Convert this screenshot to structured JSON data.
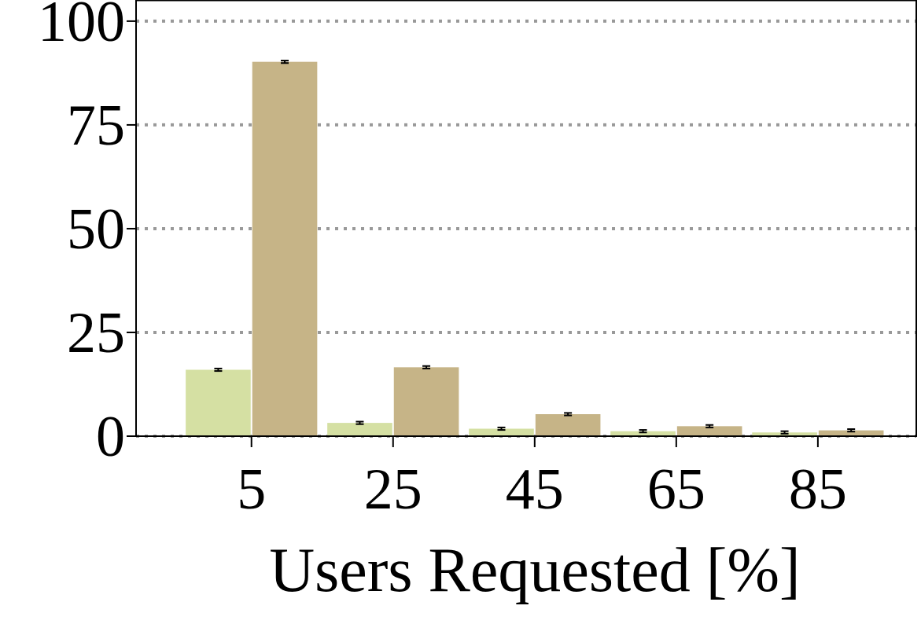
{
  "chart_data": {
    "type": "bar",
    "x_label": "Users Requested [%]",
    "x": [
      5,
      25,
      45,
      65,
      85
    ],
    "series": [
      {
        "color": "#d5e0a3",
        "values": [
          16,
          3.2,
          1.8,
          1.2,
          0.9
        ],
        "errors": [
          0.3,
          0.3,
          0.3,
          0.3,
          0.3
        ]
      },
      {
        "color": "#c6b487",
        "values": [
          90.2,
          16.6,
          5.3,
          2.4,
          1.4
        ],
        "errors": [
          0.3,
          0.3,
          0.3,
          0.3,
          0.3
        ]
      }
    ],
    "xlim": [
      -11.3,
      98.9
    ],
    "xticks": [
      5,
      25,
      45,
      65,
      85
    ],
    "ylim": [
      0,
      105
    ],
    "yticks": [
      0,
      25,
      50,
      75,
      100
    ],
    "grid": true
  }
}
